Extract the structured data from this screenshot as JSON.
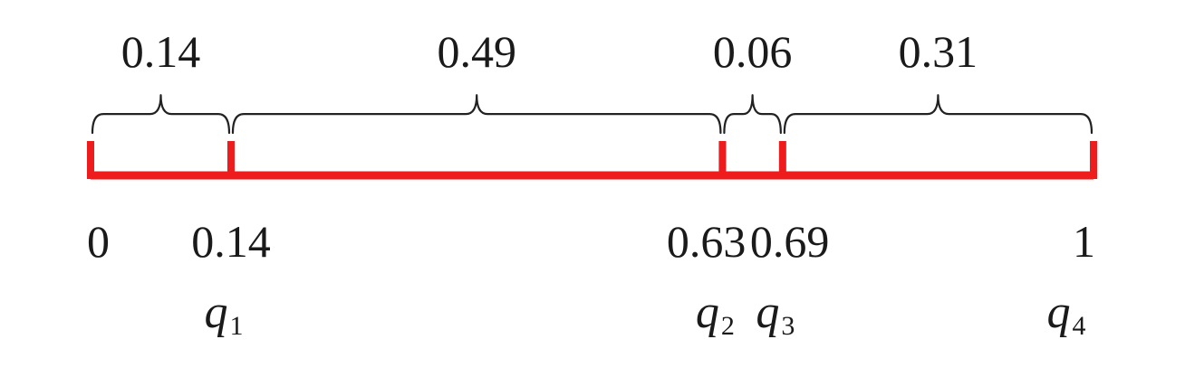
{
  "segments": [
    {
      "label": "0.14",
      "start": 0,
      "end": 0.14
    },
    {
      "label": "0.49",
      "start": 0.14,
      "end": 0.63
    },
    {
      "label": "0.06",
      "start": 0.63,
      "end": 0.69
    },
    {
      "label": "0.31",
      "start": 0.69,
      "end": 1
    }
  ],
  "ticks": [
    {
      "value": 0,
      "label": "0"
    },
    {
      "value": 0.14,
      "label": "0.14"
    },
    {
      "value": 0.63,
      "label": "0.63"
    },
    {
      "value": 0.69,
      "label": "0.69"
    },
    {
      "value": 1,
      "label": "1"
    }
  ],
  "q_labels": [
    {
      "value": 0.14,
      "letter": "q",
      "sub": "1"
    },
    {
      "value": 0.63,
      "letter": "q",
      "sub": "2"
    },
    {
      "value": 0.69,
      "letter": "q",
      "sub": "3"
    },
    {
      "value": 1,
      "letter": "q",
      "sub": "4"
    }
  ],
  "colors": {
    "line": "#ee1c1c",
    "brace": "#222222",
    "text": "#1a1a1a"
  }
}
